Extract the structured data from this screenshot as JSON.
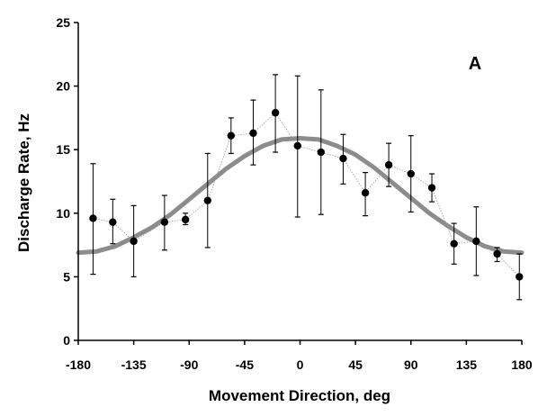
{
  "chart_data": {
    "type": "scatter",
    "title": "",
    "panel_label": "A",
    "xlabel": "Movement Direction, deg",
    "ylabel": "Discharge Rate, Hz",
    "xlim": [
      -180,
      180
    ],
    "ylim": [
      0,
      25
    ],
    "xticks": [
      -180,
      -135,
      -90,
      -45,
      0,
      45,
      90,
      135,
      180
    ],
    "yticks": [
      0,
      5,
      10,
      15,
      20,
      25
    ],
    "grid": false,
    "legend": "none",
    "series": [
      {
        "kind": "points-with-error-bars",
        "color": "#000000",
        "connected": true,
        "connector_color": "#999999",
        "points": [
          {
            "x": -168,
            "y": 9.6,
            "err_low": 5.2,
            "err_high": 13.9
          },
          {
            "x": -152,
            "y": 9.3,
            "err_low": 7.6,
            "err_high": 11.1
          },
          {
            "x": -135,
            "y": 7.8,
            "err_low": 5.0,
            "err_high": 10.6
          },
          {
            "x": -110,
            "y": 9.3,
            "err_low": 7.1,
            "err_high": 11.4
          },
          {
            "x": -93,
            "y": 9.5,
            "err_low": 9.1,
            "err_high": 10.0
          },
          {
            "x": -75,
            "y": 11.0,
            "err_low": 7.3,
            "err_high": 14.7
          },
          {
            "x": -56,
            "y": 16.1,
            "err_low": 14.7,
            "err_high": 17.5
          },
          {
            "x": -38,
            "y": 16.3,
            "err_low": 13.8,
            "err_high": 18.9
          },
          {
            "x": -20,
            "y": 17.9,
            "err_low": 14.8,
            "err_high": 20.9
          },
          {
            "x": -2,
            "y": 15.3,
            "err_low": 9.7,
            "err_high": 20.8
          },
          {
            "x": 17,
            "y": 14.8,
            "err_low": 9.9,
            "err_high": 19.7
          },
          {
            "x": 35,
            "y": 14.3,
            "err_low": 12.3,
            "err_high": 16.2
          },
          {
            "x": 53,
            "y": 11.6,
            "err_low": 9.8,
            "err_high": 13.2
          },
          {
            "x": 72,
            "y": 13.8,
            "err_low": 12.1,
            "err_high": 15.5
          },
          {
            "x": 90,
            "y": 13.1,
            "err_low": 10.1,
            "err_high": 16.1
          },
          {
            "x": 107,
            "y": 12.0,
            "err_low": 10.9,
            "err_high": 13.1
          },
          {
            "x": 125,
            "y": 7.6,
            "err_low": 6.0,
            "err_high": 9.2
          },
          {
            "x": 143,
            "y": 7.8,
            "err_low": 5.1,
            "err_high": 10.5
          },
          {
            "x": 160,
            "y": 6.8,
            "err_low": 6.2,
            "err_high": 7.3
          },
          {
            "x": 178,
            "y": 5.0,
            "err_low": 3.2,
            "err_high": 6.8
          }
        ]
      },
      {
        "kind": "fit-curve",
        "color": "#8c8c8c",
        "x": [
          -180,
          -165,
          -150,
          -135,
          -120,
          -105,
          -90,
          -75,
          -60,
          -45,
          -30,
          -15,
          0,
          15,
          30,
          45,
          60,
          75,
          90,
          105,
          120,
          135,
          150,
          165,
          180
        ],
        "y": [
          6.9,
          7.0,
          7.4,
          8.1,
          8.9,
          9.9,
          11.1,
          12.3,
          13.5,
          14.5,
          15.3,
          15.8,
          15.9,
          15.8,
          15.3,
          14.6,
          13.6,
          12.4,
          11.2,
          10.0,
          9.0,
          8.1,
          7.4,
          7.0,
          6.9
        ]
      }
    ]
  }
}
